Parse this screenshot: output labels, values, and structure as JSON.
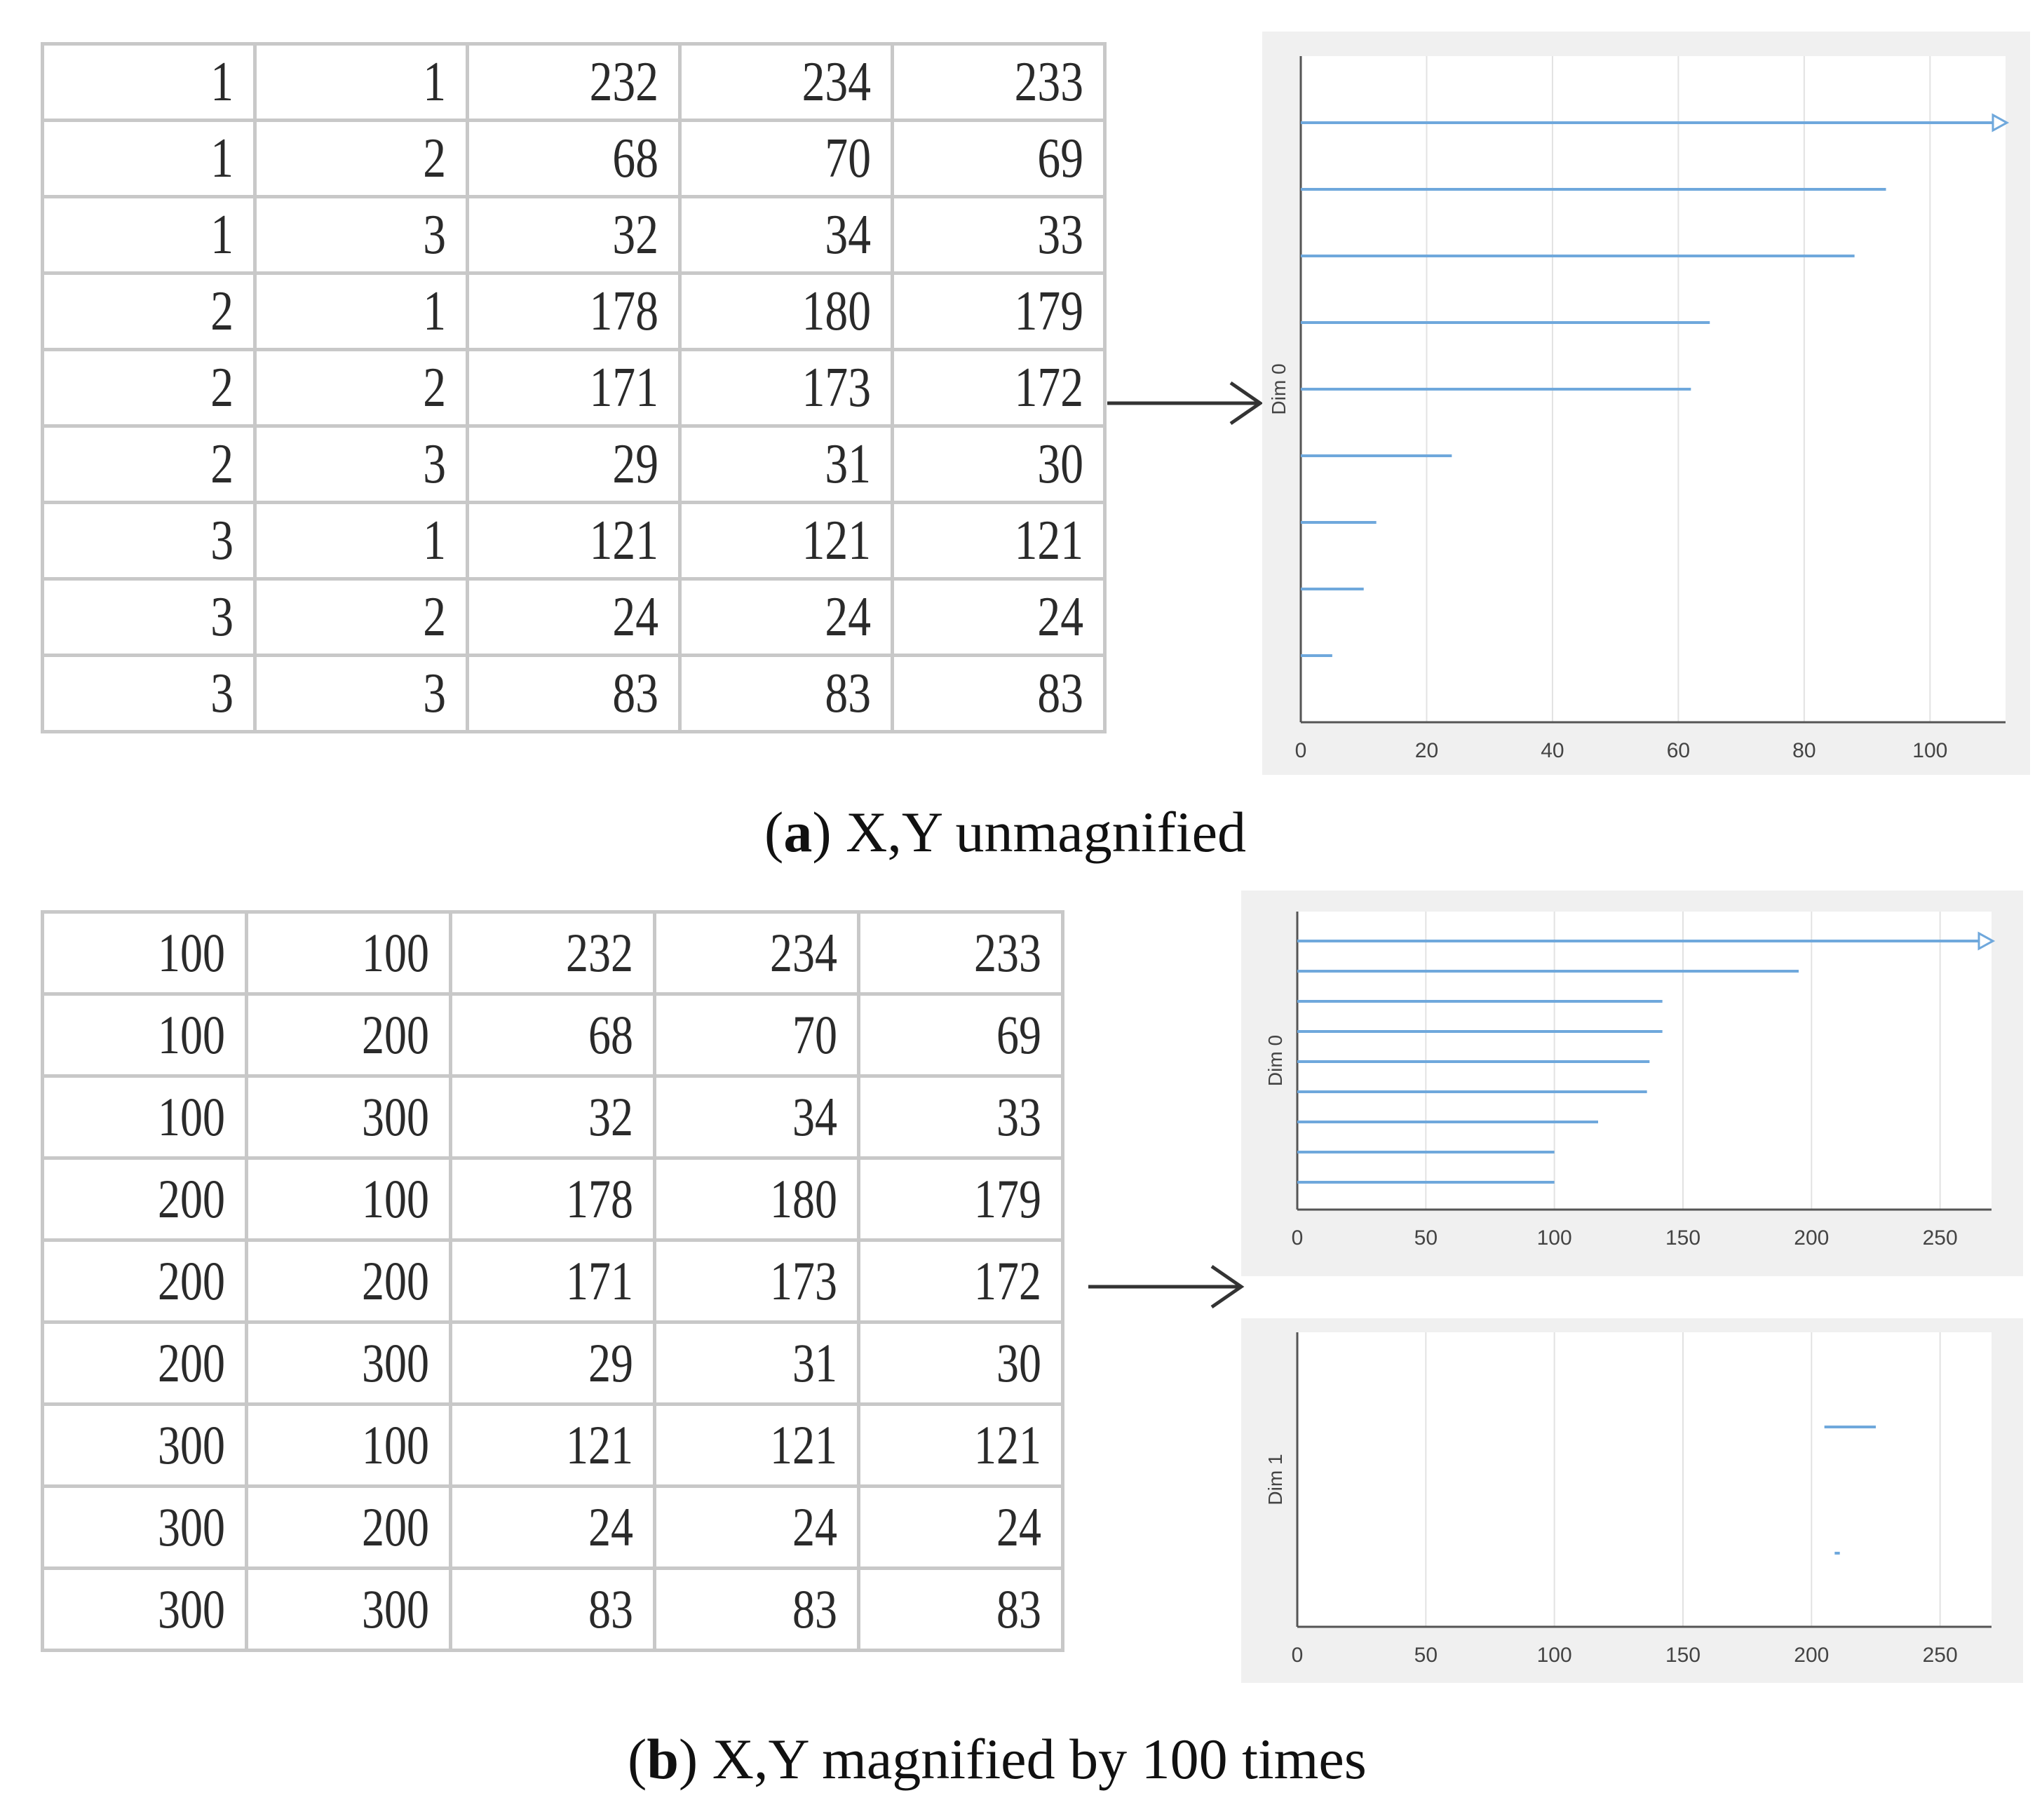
{
  "panels": [
    {
      "id": "a",
      "caption_letter": "a",
      "caption_text": "X,Y unmagnified",
      "table": {
        "rows": [
          [
            "1",
            "1",
            "232",
            "234",
            "233"
          ],
          [
            "1",
            "2",
            "68",
            "70",
            "69"
          ],
          [
            "1",
            "3",
            "32",
            "34",
            "33"
          ],
          [
            "2",
            "1",
            "178",
            "180",
            "179"
          ],
          [
            "2",
            "2",
            "171",
            "173",
            "172"
          ],
          [
            "2",
            "3",
            "29",
            "31",
            "30"
          ],
          [
            "3",
            "1",
            "121",
            "121",
            "121"
          ],
          [
            "3",
            "2",
            "24",
            "24",
            "24"
          ],
          [
            "3",
            "3",
            "83",
            "83",
            "83"
          ]
        ]
      }
    },
    {
      "id": "b",
      "caption_letter": "b",
      "caption_text": "X,Y magnified by 100 times",
      "table": {
        "rows": [
          [
            "100",
            "100",
            "232",
            "234",
            "233"
          ],
          [
            "100",
            "200",
            "68",
            "70",
            "69"
          ],
          [
            "100",
            "300",
            "32",
            "34",
            "33"
          ],
          [
            "200",
            "100",
            "178",
            "180",
            "179"
          ],
          [
            "200",
            "200",
            "171",
            "173",
            "172"
          ],
          [
            "200",
            "300",
            "29",
            "31",
            "30"
          ],
          [
            "300",
            "100",
            "121",
            "121",
            "121"
          ],
          [
            "300",
            "200",
            "24",
            "24",
            "24"
          ],
          [
            "300",
            "300",
            "83",
            "83",
            "83"
          ]
        ]
      }
    }
  ],
  "chart_data": [
    {
      "id": "a-dim0",
      "type": "bar",
      "orientation": "horizontal",
      "ylabel": "Dim 0",
      "xlim": [
        0,
        112
      ],
      "xticks": [
        0,
        20,
        40,
        60,
        80,
        100
      ],
      "grid": "vertical",
      "values": [
        112,
        93,
        88,
        65,
        62,
        24,
        12,
        10,
        5
      ],
      "first_bar_overflow_arrow": true,
      "color": "#6fa8dc"
    },
    {
      "id": "b-dim0",
      "type": "bar",
      "orientation": "horizontal",
      "ylabel": "Dim 0",
      "xlim": [
        0,
        270
      ],
      "xticks": [
        0,
        50,
        100,
        150,
        200,
        250
      ],
      "grid": "vertical",
      "values": [
        270,
        195,
        142,
        142,
        137,
        136,
        117,
        100,
        100
      ],
      "first_bar_overflow_arrow": true,
      "color": "#6fa8dc"
    },
    {
      "id": "b-dim1",
      "type": "bar",
      "orientation": "horizontal",
      "ylabel": "Dim 1",
      "xlim": [
        0,
        270
      ],
      "xticks": [
        0,
        50,
        100,
        150,
        200,
        250
      ],
      "grid": "vertical",
      "segments": [
        {
          "start": 205,
          "end": 225
        },
        {
          "start": 209,
          "end": 211
        }
      ],
      "color": "#6fa8dc"
    }
  ],
  "colors": {
    "bar": "#6fa8dc",
    "plot_frame": "#f0f0f0",
    "grid": "#e2e2e2",
    "axis": "#555555",
    "arrow": "#333333"
  }
}
